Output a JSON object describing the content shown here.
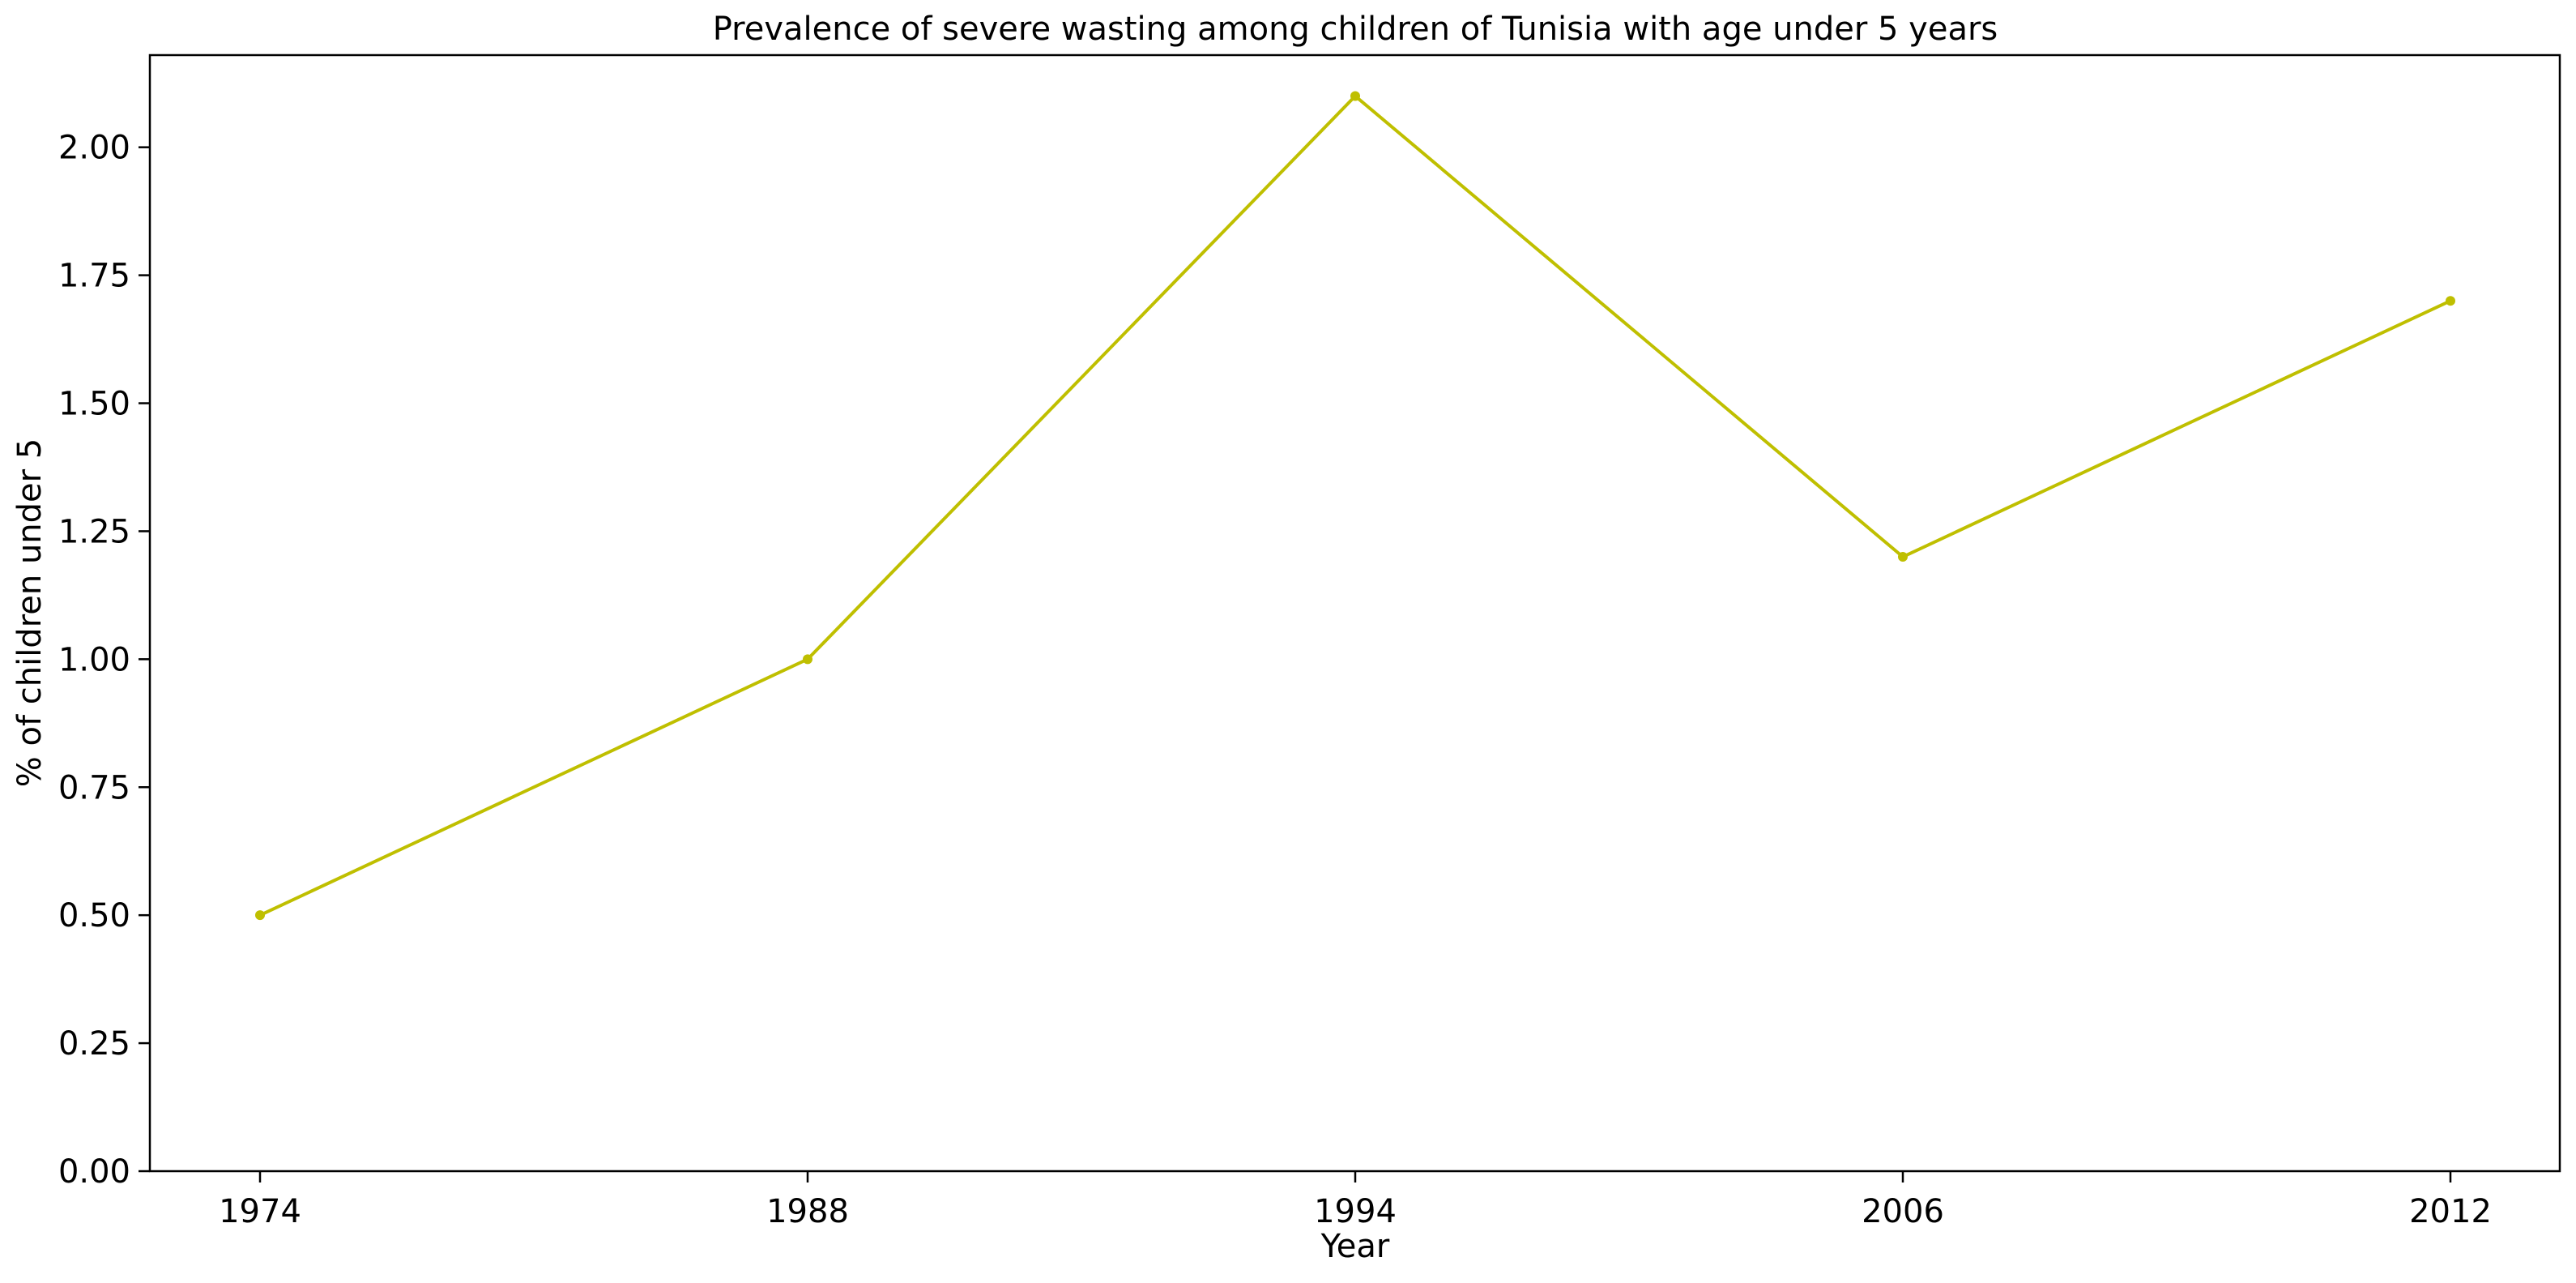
{
  "chart_data": {
    "type": "line",
    "title": "Prevalence of severe wasting among children of Tunisia with age under 5 years",
    "xlabel": "Year",
    "ylabel": "% of children under 5",
    "categories": [
      "1974",
      "1988",
      "1994",
      "2006",
      "2012"
    ],
    "series": [
      {
        "values": [
          0.5,
          1.0,
          2.1,
          1.2,
          1.7
        ],
        "color": "#bfbf00"
      }
    ],
    "ylim": [
      0,
      2.18
    ],
    "yticks": [
      "0.00",
      "0.25",
      "0.50",
      "0.75",
      "1.00",
      "1.25",
      "1.50",
      "1.75",
      "2.00"
    ],
    "grid": false,
    "legend": "none"
  }
}
